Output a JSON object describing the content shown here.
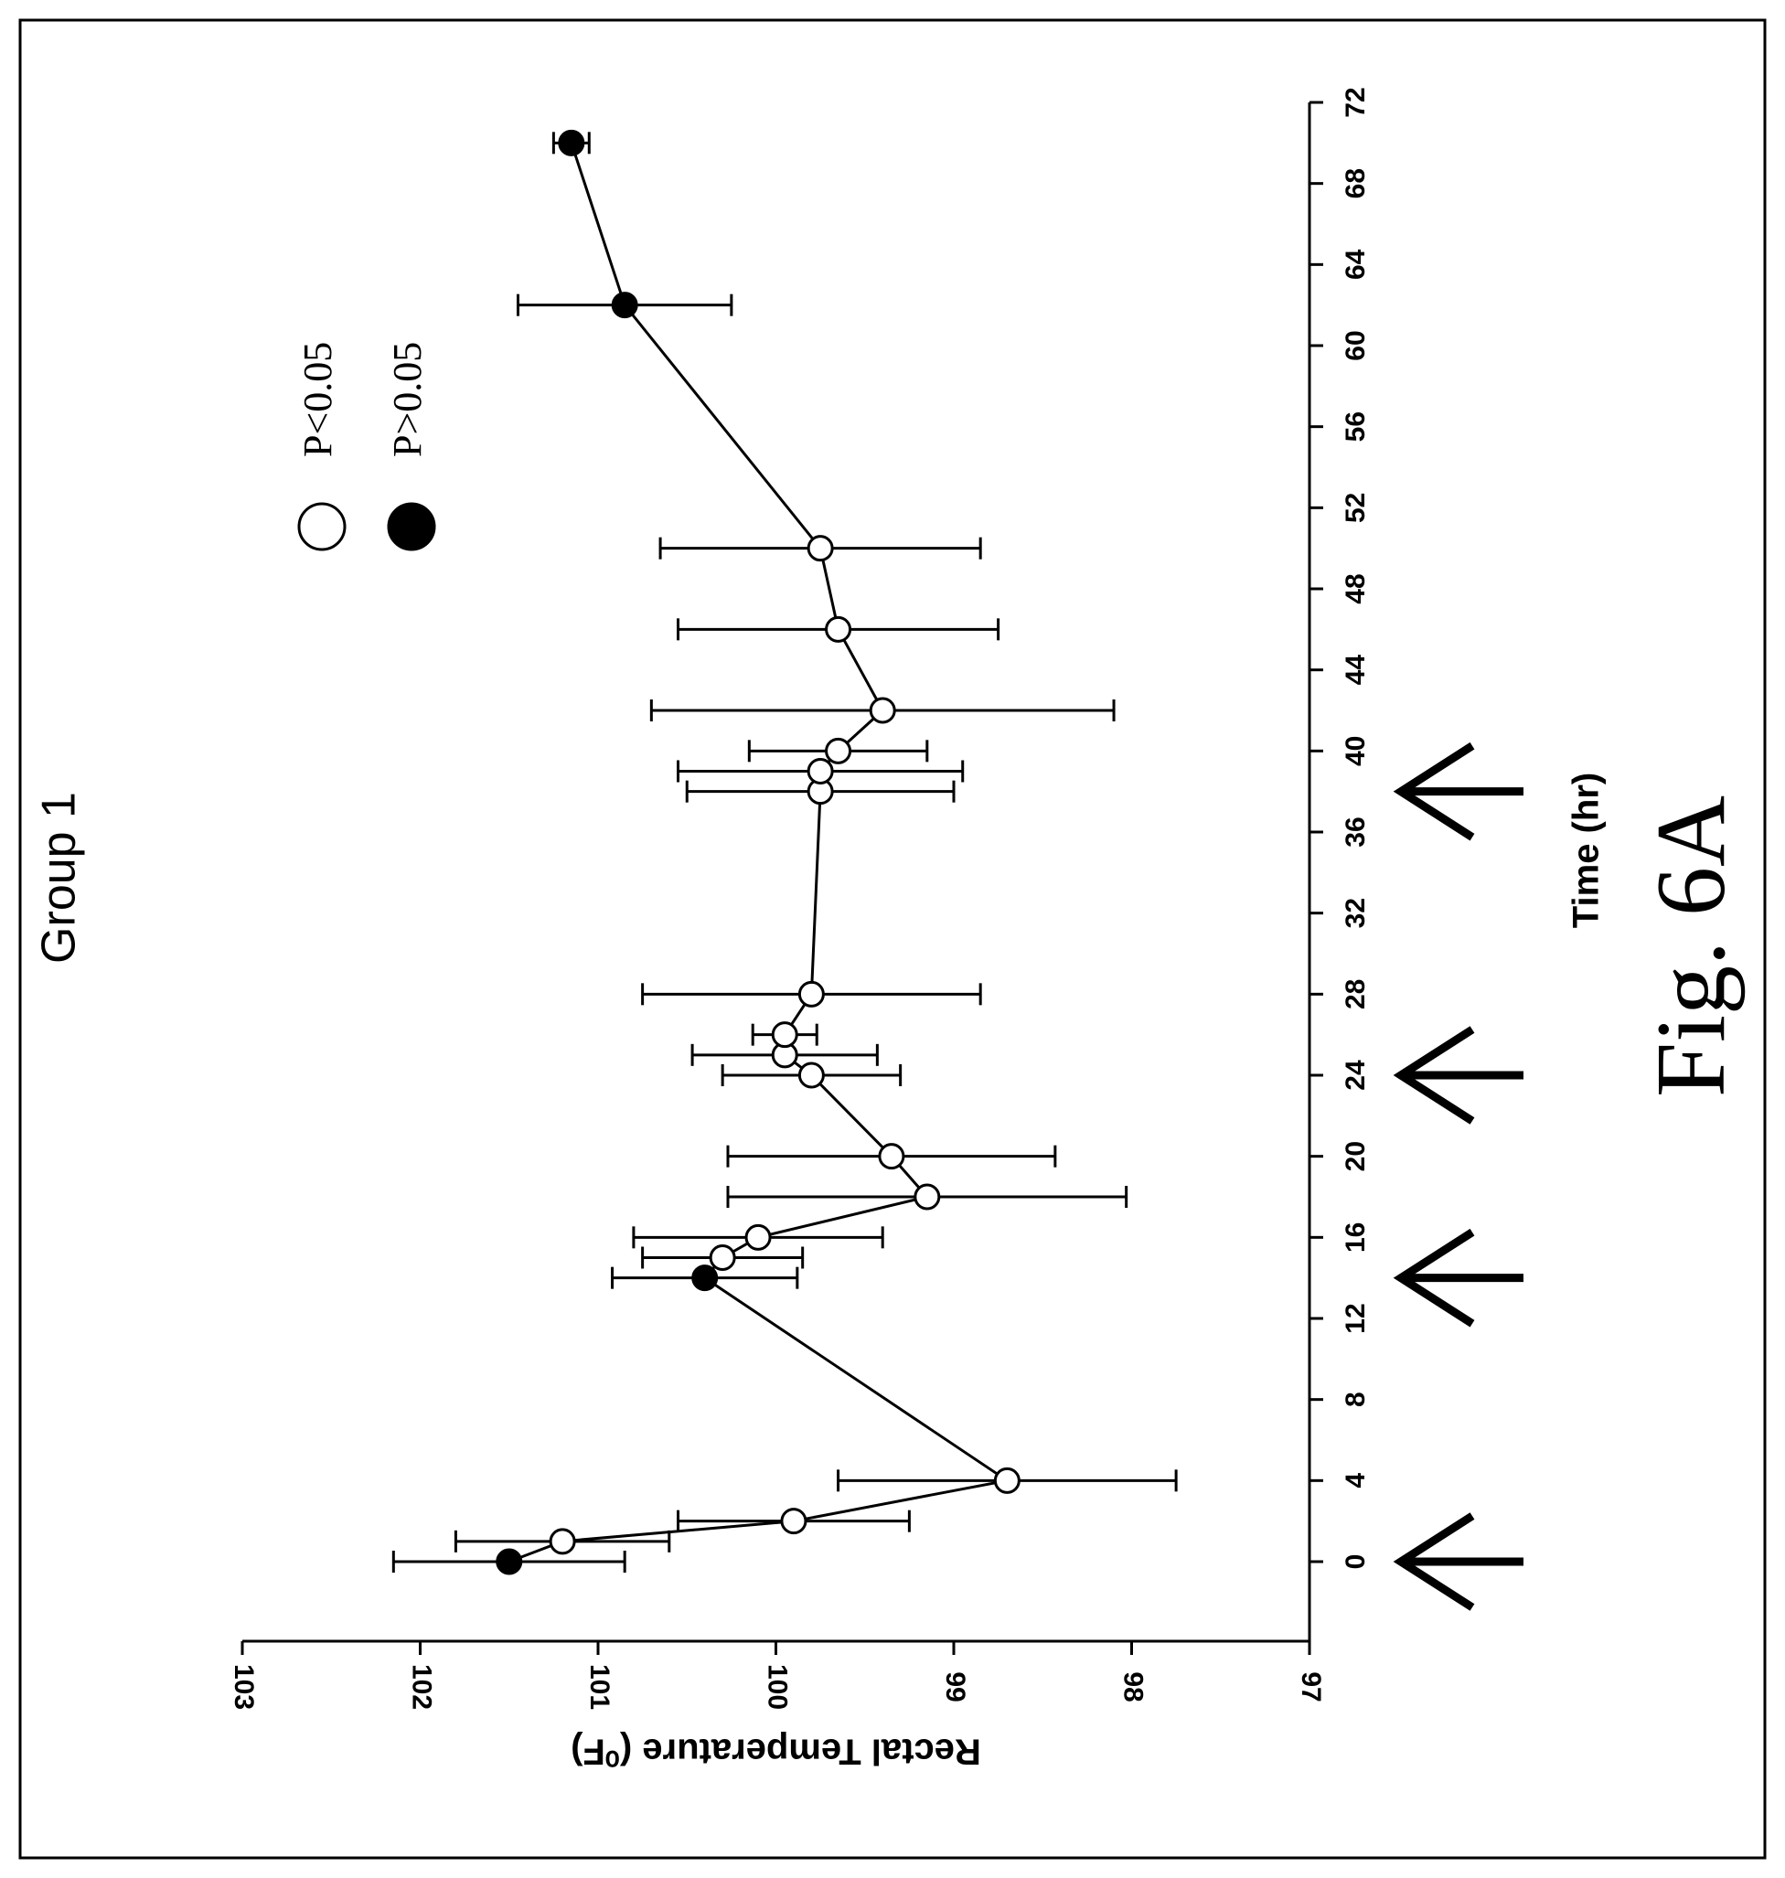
{
  "figure_label": "Fig. 6A",
  "chart_data": {
    "type": "scatter",
    "title": "Group 1",
    "xlabel": "Time (hr)",
    "ylabel": "Rectal Temperature (⁰F)",
    "xlim": [
      -4,
      72
    ],
    "ylim": [
      97,
      103
    ],
    "xticks": [
      "0",
      "4",
      "8",
      "12",
      "16",
      "20",
      "24",
      "28",
      "32",
      "36",
      "40",
      "44",
      "48",
      "52",
      "56",
      "60",
      "64",
      "68",
      "72"
    ],
    "yticks": [
      "97",
      "98",
      "99",
      "100",
      "101",
      "102",
      "103"
    ],
    "connected": true,
    "error_bars": true,
    "legend": {
      "position": "upper-right",
      "entries": [
        {
          "marker": "open-circle",
          "label": "P<0.05"
        },
        {
          "marker": "filled-circle",
          "label": "P>0.05"
        }
      ]
    },
    "points": [
      {
        "x": 0,
        "y": 101.5,
        "err": 0.65,
        "significant": false
      },
      {
        "x": 1,
        "y": 101.2,
        "err": 0.6,
        "significant": true
      },
      {
        "x": 2,
        "y": 99.9,
        "err": 0.65,
        "significant": true
      },
      {
        "x": 4,
        "y": 98.7,
        "err": 0.95,
        "significant": true
      },
      {
        "x": 14,
        "y": 100.4,
        "err": 0.52,
        "significant": false
      },
      {
        "x": 15,
        "y": 100.3,
        "err": 0.45,
        "significant": true
      },
      {
        "x": 16,
        "y": 100.1,
        "err": 0.7,
        "significant": true
      },
      {
        "x": 18,
        "y": 99.15,
        "err": 1.12,
        "significant": true
      },
      {
        "x": 20,
        "y": 99.35,
        "err": 0.92,
        "significant": true
      },
      {
        "x": 24,
        "y": 99.8,
        "err": 0.5,
        "significant": true
      },
      {
        "x": 25,
        "y": 99.95,
        "err": 0.52,
        "significant": true
      },
      {
        "x": 26,
        "y": 99.95,
        "err": 0.18,
        "significant": true
      },
      {
        "x": 28,
        "y": 99.8,
        "err": 0.95,
        "significant": true
      },
      {
        "x": 38,
        "y": 99.75,
        "err": 0.75,
        "significant": true
      },
      {
        "x": 39,
        "y": 99.75,
        "err": 0.8,
        "significant": true
      },
      {
        "x": 40,
        "y": 99.65,
        "err": 0.5,
        "significant": true
      },
      {
        "x": 42,
        "y": 99.4,
        "err": 1.3,
        "significant": true
      },
      {
        "x": 46,
        "y": 99.65,
        "err": 0.9,
        "significant": true
      },
      {
        "x": 50,
        "y": 99.75,
        "err": 0.9,
        "significant": true
      },
      {
        "x": 62,
        "y": 100.85,
        "err": 0.6,
        "significant": false
      },
      {
        "x": 70,
        "y": 101.15,
        "err": 0.1,
        "significant": false
      }
    ],
    "arrows_at_x": [
      0,
      14,
      24,
      38
    ]
  }
}
